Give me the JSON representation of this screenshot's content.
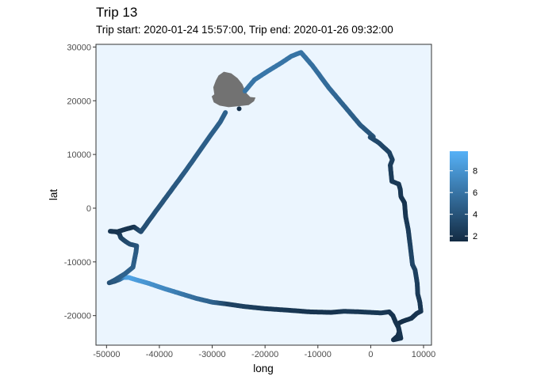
{
  "chart_data": {
    "type": "scatter",
    "title": "Trip 13",
    "subtitle": "Trip start: 2020-01-24 15:57:00, Trip end: 2020-01-26 09:32:00",
    "xlabel": "long",
    "ylabel": "lat",
    "xlim": [
      -52000,
      11500
    ],
    "ylim": [
      -25500,
      30500
    ],
    "x_ticks": [
      -50000,
      -40000,
      -30000,
      -20000,
      -10000,
      0,
      10000
    ],
    "x_tick_labels": [
      "-50000",
      "-40000",
      "-30000",
      "-20000",
      "-10000",
      "0",
      "10000"
    ],
    "y_ticks": [
      -20000,
      -10000,
      0,
      10000,
      20000,
      30000
    ],
    "y_tick_labels": [
      "-20000",
      "-10000",
      "0",
      "10000",
      "20000",
      "30000"
    ],
    "panel_background": "#ebf5fe",
    "land_color": "#727272",
    "color_scale": {
      "low": "#132b43",
      "high": "#56b1f7",
      "range": [
        1.5,
        9.8
      ]
    },
    "legend": {
      "position": "right",
      "ticks": [
        2,
        4,
        6,
        8
      ],
      "tick_labels": [
        "2",
        "4",
        "6",
        "8"
      ]
    },
    "island": [
      [
        -30100,
        20800
      ],
      [
        -29600,
        21200
      ],
      [
        -29800,
        22500
      ],
      [
        -29300,
        23800
      ],
      [
        -28800,
        24700
      ],
      [
        -27800,
        25400
      ],
      [
        -26400,
        25100
      ],
      [
        -25200,
        24200
      ],
      [
        -24300,
        23100
      ],
      [
        -23600,
        21500
      ],
      [
        -22800,
        20700
      ],
      [
        -21800,
        20600
      ],
      [
        -22100,
        19900
      ],
      [
        -23100,
        19200
      ],
      [
        -24800,
        19000
      ],
      [
        -26900,
        18800
      ],
      [
        -28600,
        19100
      ],
      [
        -29700,
        19700
      ]
    ],
    "path": [
      [
        -24900,
        18500,
        1.8
      ],
      [
        -23800,
        21800,
        6.0
      ],
      [
        -22000,
        23900,
        6.1
      ],
      [
        -19500,
        25500,
        6.2
      ],
      [
        -17000,
        27000,
        6.1
      ],
      [
        -15000,
        28300,
        6.0
      ],
      [
        -13200,
        29000,
        6.0
      ],
      [
        -11000,
        26500,
        5.7
      ],
      [
        -8000,
        22500,
        5.5
      ],
      [
        -5000,
        19000,
        5.0
      ],
      [
        -2000,
        15500,
        4.5
      ],
      [
        500,
        13300,
        4.0
      ],
      [
        -100,
        13200,
        3.6
      ],
      [
        1500,
        12200,
        3.3
      ],
      [
        3500,
        10400,
        3.0
      ],
      [
        4100,
        9000,
        2.8
      ],
      [
        3700,
        8000,
        2.6
      ],
      [
        4000,
        5000,
        2.5
      ],
      [
        5300,
        4500,
        2.4
      ],
      [
        5600,
        3500,
        2.3
      ],
      [
        5700,
        2200,
        2.2
      ],
      [
        6400,
        1000,
        2.0
      ],
      [
        6600,
        -1500,
        2.2
      ],
      [
        7100,
        -4000,
        2.5
      ],
      [
        7600,
        -8000,
        3.0
      ],
      [
        7900,
        -10500,
        3.2
      ],
      [
        8400,
        -11500,
        2.9
      ],
      [
        8800,
        -14000,
        2.7
      ],
      [
        8900,
        -16000,
        2.5
      ],
      [
        9300,
        -17500,
        2.3
      ],
      [
        9500,
        -19200,
        2.2
      ],
      [
        8700,
        -19600,
        2.1
      ],
      [
        7700,
        -20500,
        2.0
      ],
      [
        6200,
        -21000,
        1.8
      ],
      [
        5100,
        -21500,
        1.7
      ],
      [
        5400,
        -23000,
        1.8
      ],
      [
        5100,
        -23800,
        1.9
      ],
      [
        4300,
        -24500,
        1.8
      ],
      [
        5700,
        -24200,
        2.0
      ],
      [
        5300,
        -22300,
        2.1
      ],
      [
        4700,
        -21200,
        2.0
      ],
      [
        4200,
        -20000,
        2.0
      ],
      [
        3500,
        -19300,
        2.1
      ],
      [
        2000,
        -19500,
        2.3
      ],
      [
        -2000,
        -19300,
        2.3
      ],
      [
        -5000,
        -19200,
        2.4
      ],
      [
        -7500,
        -19400,
        2.0
      ],
      [
        -11500,
        -19300,
        2.1
      ],
      [
        -15500,
        -19000,
        2.2
      ],
      [
        -20000,
        -18700,
        2.5
      ],
      [
        -24000,
        -18300,
        2.8
      ],
      [
        -27500,
        -17800,
        3.0
      ],
      [
        -30000,
        -17500,
        4.8
      ],
      [
        -33000,
        -16800,
        5.4
      ],
      [
        -36000,
        -15900,
        6.2
      ],
      [
        -39000,
        -15000,
        7.2
      ],
      [
        -42000,
        -14000,
        7.8
      ],
      [
        -44500,
        -13300,
        8.5
      ],
      [
        -45800,
        -12900,
        9.0
      ],
      [
        -46800,
        -12900,
        8.7
      ],
      [
        -47600,
        -13300,
        5.6
      ],
      [
        -48400,
        -13600,
        4.0
      ],
      [
        -49500,
        -13900,
        3.8
      ],
      [
        -48500,
        -13400,
        4.4
      ],
      [
        -46500,
        -12200,
        5.0
      ],
      [
        -45000,
        -11000,
        4.8
      ],
      [
        -44400,
        -8000,
        4.5
      ],
      [
        -44300,
        -7000,
        4.2
      ],
      [
        -45600,
        -6700,
        3.8
      ],
      [
        -46400,
        -6200,
        3.5
      ],
      [
        -47300,
        -5500,
        3.1
      ],
      [
        -47600,
        -4700,
        2.6
      ],
      [
        -48200,
        -4400,
        2.3
      ],
      [
        -49300,
        -4300,
        2.2
      ],
      [
        -48000,
        -4400,
        2.1
      ],
      [
        -46000,
        -3800,
        2.1
      ],
      [
        -44800,
        -3500,
        2.0
      ],
      [
        -43500,
        -4400,
        3.6
      ],
      [
        -41000,
        -1000,
        4.0
      ],
      [
        -38000,
        3000,
        4.2
      ],
      [
        -35000,
        7000,
        4.5
      ],
      [
        -32500,
        10500,
        4.6
      ],
      [
        -30500,
        13300,
        4.7
      ],
      [
        -28500,
        16000,
        4.8
      ],
      [
        -27500,
        17800,
        4.9
      ]
    ],
    "sparse_segment_from": -44500
  }
}
